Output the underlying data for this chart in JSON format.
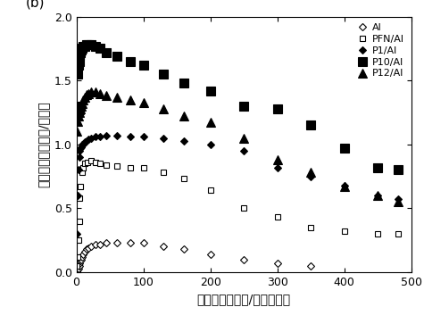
{
  "title_label": "(b)",
  "xlabel": "电流密度（毫安/平方厘米）",
  "ylabel": "流明效率（坤德拉/安培）",
  "xlim": [
    0,
    500
  ],
  "ylim": [
    0,
    2
  ],
  "xticks": [
    0,
    100,
    200,
    300,
    400,
    500
  ],
  "yticks": [
    0,
    0.5,
    1,
    1.5,
    2
  ],
  "Al_x": [
    1,
    2,
    3,
    4,
    5,
    6,
    7,
    8,
    10,
    12,
    15,
    18,
    22,
    28,
    35,
    45,
    60,
    80,
    100,
    130,
    160,
    200,
    250,
    300,
    350
  ],
  "Al_y": [
    0.01,
    0.02,
    0.03,
    0.05,
    0.07,
    0.09,
    0.1,
    0.12,
    0.14,
    0.16,
    0.18,
    0.19,
    0.2,
    0.22,
    0.22,
    0.23,
    0.23,
    0.23,
    0.23,
    0.2,
    0.18,
    0.14,
    0.1,
    0.07,
    0.05
  ],
  "PFN_x": [
    1,
    2,
    3,
    4,
    5,
    6,
    8,
    10,
    13,
    17,
    22,
    28,
    35,
    45,
    60,
    80,
    100,
    130,
    160,
    200,
    250,
    300,
    350,
    400,
    450,
    480
  ],
  "PFN_y": [
    0.05,
    0.12,
    0.25,
    0.4,
    0.58,
    0.67,
    0.78,
    0.82,
    0.85,
    0.86,
    0.87,
    0.86,
    0.85,
    0.84,
    0.83,
    0.82,
    0.82,
    0.78,
    0.73,
    0.64,
    0.5,
    0.43,
    0.35,
    0.32,
    0.3,
    0.3
  ],
  "P1_x": [
    1,
    2,
    3,
    4,
    5,
    6,
    7,
    8,
    10,
    12,
    15,
    18,
    22,
    28,
    35,
    45,
    60,
    80,
    100,
    130,
    160,
    200,
    250,
    300,
    350,
    400,
    450,
    480
  ],
  "P1_y": [
    0.3,
    0.6,
    0.8,
    0.9,
    0.95,
    0.97,
    0.98,
    1.0,
    1.0,
    1.02,
    1.03,
    1.04,
    1.05,
    1.06,
    1.06,
    1.07,
    1.07,
    1.06,
    1.06,
    1.05,
    1.03,
    1.0,
    0.95,
    0.82,
    0.75,
    0.68,
    0.6,
    0.57
  ],
  "P10_x": [
    1,
    2,
    3,
    4,
    5,
    6,
    7,
    8,
    10,
    12,
    15,
    18,
    22,
    28,
    35,
    45,
    60,
    80,
    100,
    130,
    160,
    200,
    250,
    300,
    350,
    400,
    450,
    480
  ],
  "P10_y": [
    1.3,
    1.55,
    1.62,
    1.65,
    1.7,
    1.72,
    1.74,
    1.75,
    1.77,
    1.77,
    1.78,
    1.78,
    1.78,
    1.77,
    1.75,
    1.72,
    1.69,
    1.65,
    1.62,
    1.55,
    1.48,
    1.42,
    1.3,
    1.28,
    1.15,
    0.97,
    0.82,
    0.8
  ],
  "P12_x": [
    1,
    2,
    3,
    4,
    5,
    6,
    7,
    8,
    10,
    12,
    15,
    18,
    22,
    28,
    35,
    45,
    60,
    80,
    100,
    130,
    160,
    200,
    250,
    300,
    350,
    400,
    450,
    480
  ],
  "P12_y": [
    1.1,
    1.18,
    1.22,
    1.25,
    1.27,
    1.28,
    1.3,
    1.32,
    1.35,
    1.37,
    1.39,
    1.4,
    1.41,
    1.41,
    1.4,
    1.38,
    1.37,
    1.35,
    1.33,
    1.28,
    1.22,
    1.17,
    1.05,
    0.88,
    0.78,
    0.67,
    0.6,
    0.55
  ],
  "background_color": "#ffffff"
}
